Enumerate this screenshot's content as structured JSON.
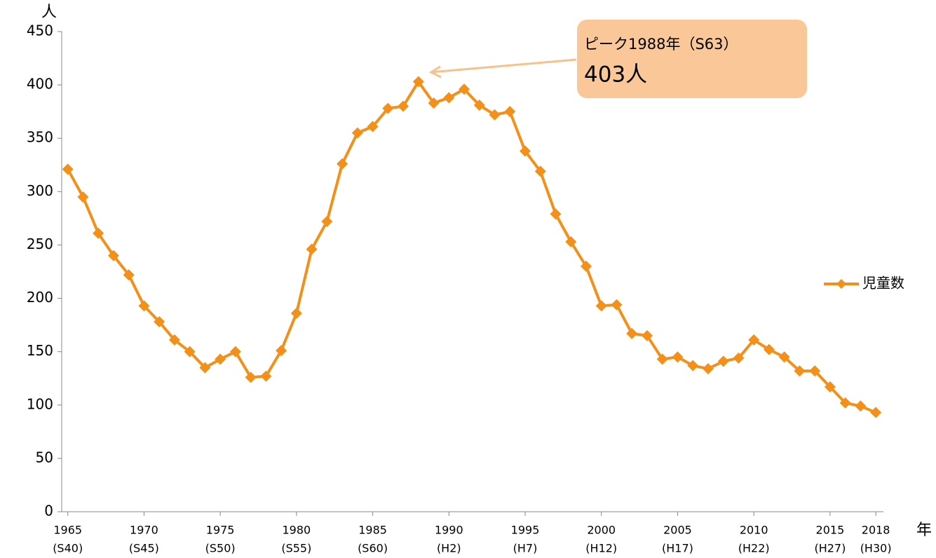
{
  "chart_data": {
    "type": "line",
    "y_label": "人",
    "x_label": "年",
    "annotation": {
      "line1": "ピーク1988年（S63）",
      "line2": "403人",
      "x": 1988
    },
    "x": [
      1965,
      1966,
      1967,
      1968,
      1969,
      1970,
      1971,
      1972,
      1973,
      1974,
      1975,
      1976,
      1977,
      1978,
      1979,
      1980,
      1981,
      1982,
      1983,
      1984,
      1985,
      1986,
      1987,
      1988,
      1989,
      1990,
      1991,
      1992,
      1993,
      1994,
      1995,
      1996,
      1997,
      1998,
      1999,
      2000,
      2001,
      2002,
      2003,
      2004,
      2005,
      2006,
      2007,
      2008,
      2009,
      2010,
      2011,
      2012,
      2013,
      2014,
      2015,
      2016,
      2017,
      2018
    ],
    "series": [
      {
        "name": "児童数",
        "color": "#f39019",
        "values": [
          321,
          295,
          261,
          240,
          222,
          193,
          178,
          161,
          150,
          135,
          143,
          150,
          126,
          127,
          151,
          186,
          246,
          272,
          326,
          355,
          361,
          378,
          380,
          403,
          383,
          388,
          396,
          381,
          372,
          375,
          338,
          319,
          279,
          253,
          230,
          193,
          194,
          167,
          165,
          143,
          145,
          137,
          134,
          141,
          144,
          161,
          152,
          145,
          132,
          132,
          117,
          102,
          99,
          93
        ]
      }
    ],
    "xlim": [
      1964.6,
      2018.5
    ],
    "xticks": [
      {
        "value": 1965,
        "label": "1965",
        "era": "(S40)"
      },
      {
        "value": 1970,
        "label": "1970",
        "era": "(S45)"
      },
      {
        "value": 1975,
        "label": "1975",
        "era": "(S50)"
      },
      {
        "value": 1980,
        "label": "1980",
        "era": "(S55)"
      },
      {
        "value": 1985,
        "label": "1985",
        "era": "(S60)"
      },
      {
        "value": 1990,
        "label": "1990",
        "era": "(H2)"
      },
      {
        "value": 1995,
        "label": "1995",
        "era": "(H7)"
      },
      {
        "value": 2000,
        "label": "2000",
        "era": "(H12)"
      },
      {
        "value": 2005,
        "label": "2005",
        "era": "(H17)"
      },
      {
        "value": 2010,
        "label": "2010",
        "era": "(H22)"
      },
      {
        "value": 2015,
        "label": "2015",
        "era": "(H27)"
      },
      {
        "value": 2018,
        "label": "2018",
        "era": "(H30)"
      }
    ],
    "ylim": [
      0,
      450
    ],
    "yticks": [
      0,
      50,
      100,
      150,
      200,
      250,
      300,
      350,
      400,
      450
    ],
    "legend": "right"
  }
}
